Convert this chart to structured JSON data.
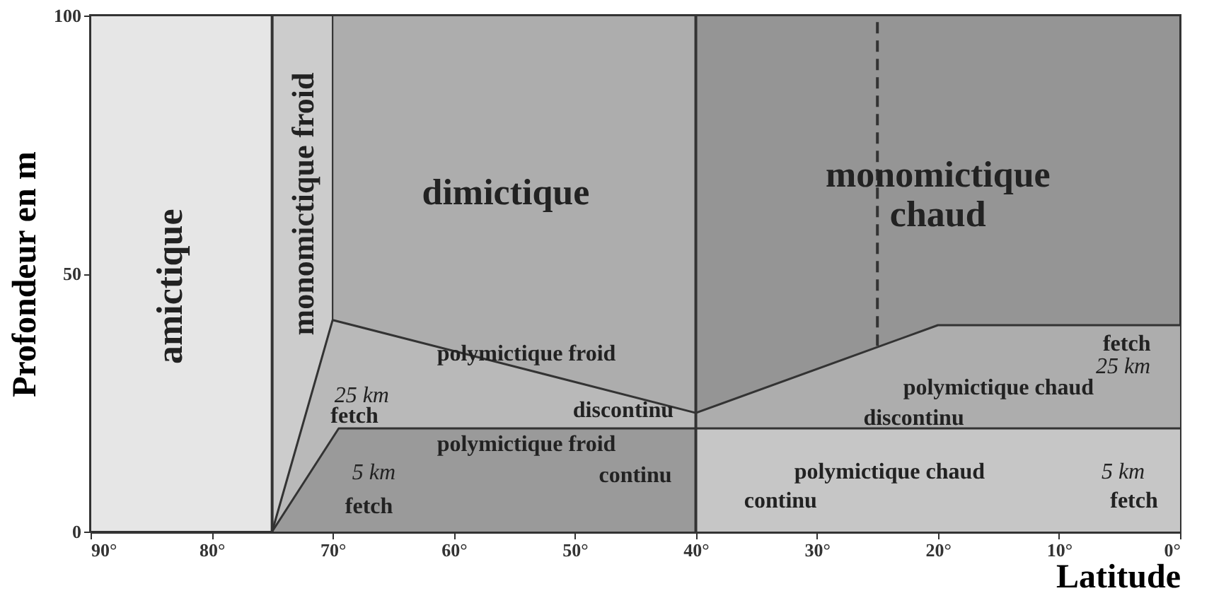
{
  "chart_data": {
    "type": "area",
    "xlabel": "Latitude",
    "ylabel": "Profondeur en m",
    "xlim": [
      90,
      0
    ],
    "ylim": [
      0,
      100
    ],
    "xticks": [
      {
        "value": 90,
        "label": "90°"
      },
      {
        "value": 80,
        "label": "80°"
      },
      {
        "value": 70,
        "label": "70°"
      },
      {
        "value": 60,
        "label": "60°"
      },
      {
        "value": 50,
        "label": "50°"
      },
      {
        "value": 40,
        "label": "40°"
      },
      {
        "value": 30,
        "label": "30°"
      },
      {
        "value": 20,
        "label": "20°"
      },
      {
        "value": 10,
        "label": "10°"
      },
      {
        "value": 0,
        "label": "0°"
      }
    ],
    "yticks": [
      0,
      50,
      100
    ],
    "grid": false,
    "bands": [
      {
        "axis": "x",
        "from": 90,
        "to": 75,
        "color": "#e6e6e6"
      },
      {
        "axis": "x",
        "from": 75,
        "to": 70,
        "color": "#cccccc"
      },
      {
        "axis": "x",
        "from": 70,
        "to": 40,
        "color": "#adadad"
      },
      {
        "axis": "x",
        "from": 40,
        "to": 0,
        "color": "#959595"
      }
    ],
    "ref_lines": [
      {
        "axis": "x",
        "value": 75,
        "color": "#333333",
        "line_style": "solid"
      },
      {
        "axis": "x",
        "value": 40,
        "color": "#333333",
        "line_style": "solid"
      }
    ],
    "series": [
      {
        "x": [
          75,
          70,
          40
        ],
        "values": [
          0,
          41,
          23
        ],
        "color": "#b9b9b9"
      },
      {
        "x": [
          75,
          69.5,
          40
        ],
        "values": [
          0,
          20,
          20
        ],
        "color": "#9a9a9a"
      },
      {
        "x": [
          40,
          20,
          0
        ],
        "values": [
          23,
          40,
          40
        ],
        "color": "#adadad"
      },
      {
        "x": [
          40,
          0
        ],
        "values": [
          20,
          20
        ],
        "color": "#c6c6c6"
      },
      {
        "type": "line",
        "x": [
          25,
          25
        ],
        "values": [
          36,
          100
        ],
        "color": "#333333",
        "line_style": "dashed"
      }
    ],
    "annotations": [
      "amictique",
      "monomictique froid",
      "dimictique",
      "monomictique\nchaud",
      "polymictique froid",
      "discontinu",
      "25 km",
      "fetch",
      "polymictique froid",
      "continu",
      "5 km",
      "fetch",
      "polymictique chaud",
      "discontinu",
      "fetch",
      "25 km",
      "polymictique chaud",
      "continu",
      "5 km",
      "fetch"
    ]
  }
}
